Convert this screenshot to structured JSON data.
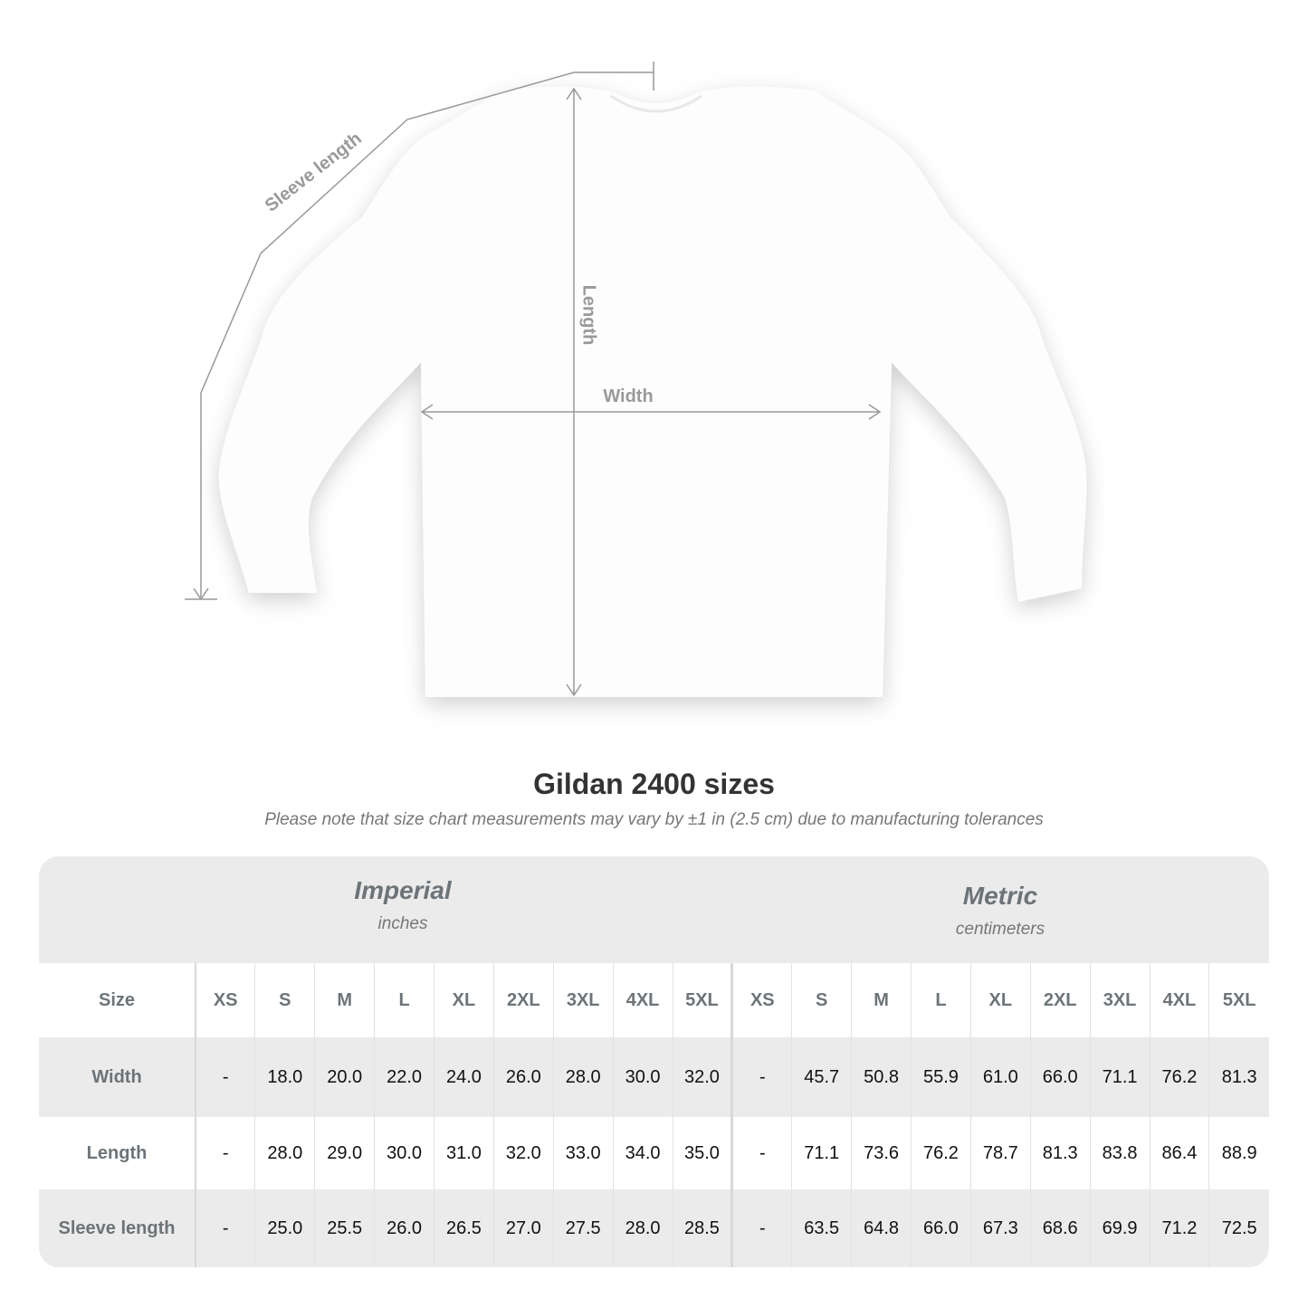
{
  "diagram": {
    "sleeve_label": "Sleeve length",
    "length_label": "Length",
    "width_label": "Width",
    "line_color": "#999999"
  },
  "title": "Gildan 2400 sizes",
  "subtitle": "Please note that size chart measurements may vary by ±1 in (2.5 cm) due to manufacturing tolerances",
  "imperial": {
    "name": "Imperial",
    "unit": "inches"
  },
  "metric": {
    "name": "Metric",
    "unit": "centimeters"
  },
  "size_header": "Size",
  "sizes": [
    "XS",
    "S",
    "M",
    "L",
    "XL",
    "2XL",
    "3XL",
    "4XL",
    "5XL"
  ],
  "rows": [
    {
      "label": "Width",
      "imperial": [
        "-",
        "18.0",
        "20.0",
        "22.0",
        "24.0",
        "26.0",
        "28.0",
        "30.0",
        "32.0"
      ],
      "metric": [
        "-",
        "45.7",
        "50.8",
        "55.9",
        "61.0",
        "66.0",
        "71.1",
        "76.2",
        "81.3"
      ]
    },
    {
      "label": "Length",
      "imperial": [
        "-",
        "28.0",
        "29.0",
        "30.0",
        "31.0",
        "32.0",
        "33.0",
        "34.0",
        "35.0"
      ],
      "metric": [
        "-",
        "71.1",
        "73.6",
        "76.2",
        "78.7",
        "81.3",
        "83.8",
        "86.4",
        "88.9"
      ]
    },
    {
      "label": "Sleeve length",
      "imperial": [
        "-",
        "25.0",
        "25.5",
        "26.0",
        "26.5",
        "27.0",
        "27.5",
        "28.0",
        "28.5"
      ],
      "metric": [
        "-",
        "63.5",
        "64.8",
        "66.0",
        "67.3",
        "68.6",
        "69.9",
        "71.2",
        "72.5"
      ]
    }
  ]
}
